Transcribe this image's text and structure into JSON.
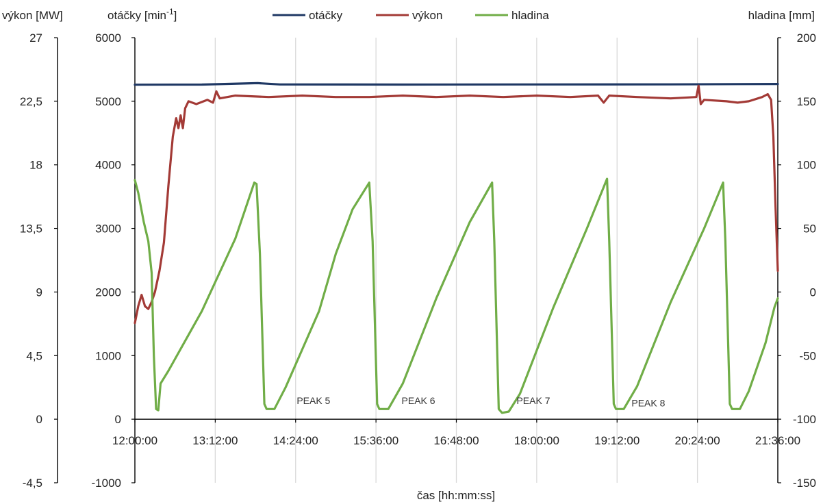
{
  "chart_data": {
    "type": "line",
    "legend": {
      "placement": "top-center"
    },
    "grid": {
      "vertical": true,
      "horizontal": false
    },
    "xlabel": "čas [hh:mm:ss]",
    "x_ticks": [
      "12:00:00",
      "13:12:00",
      "14:24:00",
      "15:36:00",
      "16:48:00",
      "18:00:00",
      "19:12:00",
      "20:24:00",
      "21:36:00"
    ],
    "xlim": [
      "12:00:00",
      "21:36:00"
    ],
    "axes": {
      "power": {
        "label": "výkon [MW]",
        "ylim": [
          -4.5,
          27
        ],
        "ticks": [
          "27",
          "22,5",
          "18",
          "13,5",
          "9",
          "4,5",
          "0",
          "-4,5"
        ]
      },
      "speed": {
        "label_main": "otáčky [min",
        "label_sup": "-1",
        "label_end": "]",
        "ylim": [
          -1000,
          6000
        ],
        "ticks": [
          "6000",
          "5000",
          "4000",
          "3000",
          "2000",
          "1000",
          "0",
          "-1000"
        ]
      },
      "level": {
        "label": "hladina [mm]",
        "ylim": [
          -150,
          200
        ],
        "ticks": [
          "200",
          "150",
          "100",
          "50",
          "0",
          "-50",
          "-100",
          "-150"
        ]
      }
    },
    "series": [
      {
        "name": "otáčky",
        "axis": "speed",
        "color": "#1f3864",
        "points": [
          [
            "12:00:00",
            5260
          ],
          [
            "13:00:00",
            5262
          ],
          [
            "13:50:00",
            5285
          ],
          [
            "14:10:00",
            5265
          ],
          [
            "16:00:00",
            5262
          ],
          [
            "18:00:00",
            5265
          ],
          [
            "20:00:00",
            5266
          ],
          [
            "21:00:00",
            5270
          ],
          [
            "21:36:00",
            5272
          ]
        ]
      },
      {
        "name": "výkon",
        "axis": "power",
        "color": "#a33a36",
        "points": [
          [
            "12:00:00",
            6.8
          ],
          [
            "12:03:00",
            8.0
          ],
          [
            "12:06:00",
            8.8
          ],
          [
            "12:09:00",
            8.0
          ],
          [
            "12:12:00",
            7.8
          ],
          [
            "12:15:00",
            8.3
          ],
          [
            "12:18:00",
            9.0
          ],
          [
            "12:22:00",
            10.5
          ],
          [
            "12:26:00",
            12.5
          ],
          [
            "12:30:00",
            16.5
          ],
          [
            "12:34:00",
            20.0
          ],
          [
            "12:37:00",
            21.3
          ],
          [
            "12:39:00",
            20.6
          ],
          [
            "12:41:00",
            21.5
          ],
          [
            "12:43:00",
            20.6
          ],
          [
            "12:45:00",
            22.0
          ],
          [
            "12:48:00",
            22.5
          ],
          [
            "12:55:00",
            22.3
          ],
          [
            "13:05:00",
            22.6
          ],
          [
            "13:10:00",
            22.4
          ],
          [
            "13:13:00",
            23.2
          ],
          [
            "13:16:00",
            22.7
          ],
          [
            "13:30:00",
            22.9
          ],
          [
            "14:00:00",
            22.8
          ],
          [
            "14:30:00",
            22.9
          ],
          [
            "15:00:00",
            22.8
          ],
          [
            "15:30:00",
            22.8
          ],
          [
            "16:00:00",
            22.9
          ],
          [
            "16:30:00",
            22.8
          ],
          [
            "17:00:00",
            22.9
          ],
          [
            "17:30:00",
            22.8
          ],
          [
            "18:00:00",
            22.9
          ],
          [
            "18:30:00",
            22.8
          ],
          [
            "18:55:00",
            22.9
          ],
          [
            "19:00:00",
            22.4
          ],
          [
            "19:05:00",
            22.9
          ],
          [
            "19:30:00",
            22.8
          ],
          [
            "20:00:00",
            22.7
          ],
          [
            "20:23:00",
            22.8
          ],
          [
            "20:25:00",
            23.6
          ],
          [
            "20:27:00",
            22.3
          ],
          [
            "20:30:00",
            22.6
          ],
          [
            "20:50:00",
            22.5
          ],
          [
            "21:00:00",
            22.4
          ],
          [
            "21:10:00",
            22.5
          ],
          [
            "21:22:00",
            22.8
          ],
          [
            "21:27:00",
            23.0
          ],
          [
            "21:30:00",
            22.6
          ],
          [
            "21:32:00",
            20.0
          ],
          [
            "21:34:00",
            15.0
          ],
          [
            "21:36:00",
            10.5
          ]
        ]
      },
      {
        "name": "hladina",
        "axis": "level",
        "color": "#70ad47",
        "points": [
          [
            "12:00:00",
            88
          ],
          [
            "12:03:00",
            78
          ],
          [
            "12:08:00",
            55
          ],
          [
            "12:12:00",
            40
          ],
          [
            "12:15:00",
            15
          ],
          [
            "12:17:00",
            -50
          ],
          [
            "12:19:00",
            -92
          ],
          [
            "12:21:00",
            -93
          ],
          [
            "12:23:00",
            -72
          ],
          [
            "12:30:00",
            -62
          ],
          [
            "13:00:00",
            -15
          ],
          [
            "13:30:00",
            42
          ],
          [
            "13:47:00",
            86
          ],
          [
            "13:49:00",
            85
          ],
          [
            "13:52:00",
            30
          ],
          [
            "13:56:00",
            -88
          ],
          [
            "13:58:00",
            -92
          ],
          [
            "14:05:00",
            -92
          ],
          [
            "14:15:00",
            -75
          ],
          [
            "14:45:00",
            -15
          ],
          [
            "15:00:00",
            30
          ],
          [
            "15:15:00",
            65
          ],
          [
            "15:30:00",
            86
          ],
          [
            "15:33:00",
            40
          ],
          [
            "15:37:00",
            -88
          ],
          [
            "15:39:00",
            -92
          ],
          [
            "15:47:00",
            -92
          ],
          [
            "16:00:00",
            -72
          ],
          [
            "16:30:00",
            -5
          ],
          [
            "17:00:00",
            55
          ],
          [
            "17:20:00",
            86
          ],
          [
            "17:22:00",
            40
          ],
          [
            "17:26:00",
            -92
          ],
          [
            "17:29:00",
            -95
          ],
          [
            "17:35:00",
            -94
          ],
          [
            "17:45:00",
            -80
          ],
          [
            "18:15:00",
            -12
          ],
          [
            "18:45:00",
            50
          ],
          [
            "19:03:00",
            89
          ],
          [
            "19:05:00",
            40
          ],
          [
            "19:09:00",
            -88
          ],
          [
            "19:11:00",
            -92
          ],
          [
            "19:18:00",
            -92
          ],
          [
            "19:30:00",
            -74
          ],
          [
            "20:00:00",
            -8
          ],
          [
            "20:30:00",
            50
          ],
          [
            "20:47:00",
            86
          ],
          [
            "20:49:00",
            40
          ],
          [
            "20:53:00",
            -88
          ],
          [
            "20:55:00",
            -92
          ],
          [
            "21:02:00",
            -92
          ],
          [
            "21:10:00",
            -78
          ],
          [
            "21:25:00",
            -40
          ],
          [
            "21:33:00",
            -12
          ],
          [
            "21:36:00",
            -5
          ]
        ]
      }
    ],
    "annotations": [
      {
        "text": "PEAK 5",
        "x": "14:40:00",
        "y_level": -88
      },
      {
        "text": "PEAK 6",
        "x": "16:14:00",
        "y_level": -88
      },
      {
        "text": "PEAK 7",
        "x": "17:57:00",
        "y_level": -88
      },
      {
        "text": "PEAK 8",
        "x": "19:40:00",
        "y_level": -90
      }
    ]
  }
}
